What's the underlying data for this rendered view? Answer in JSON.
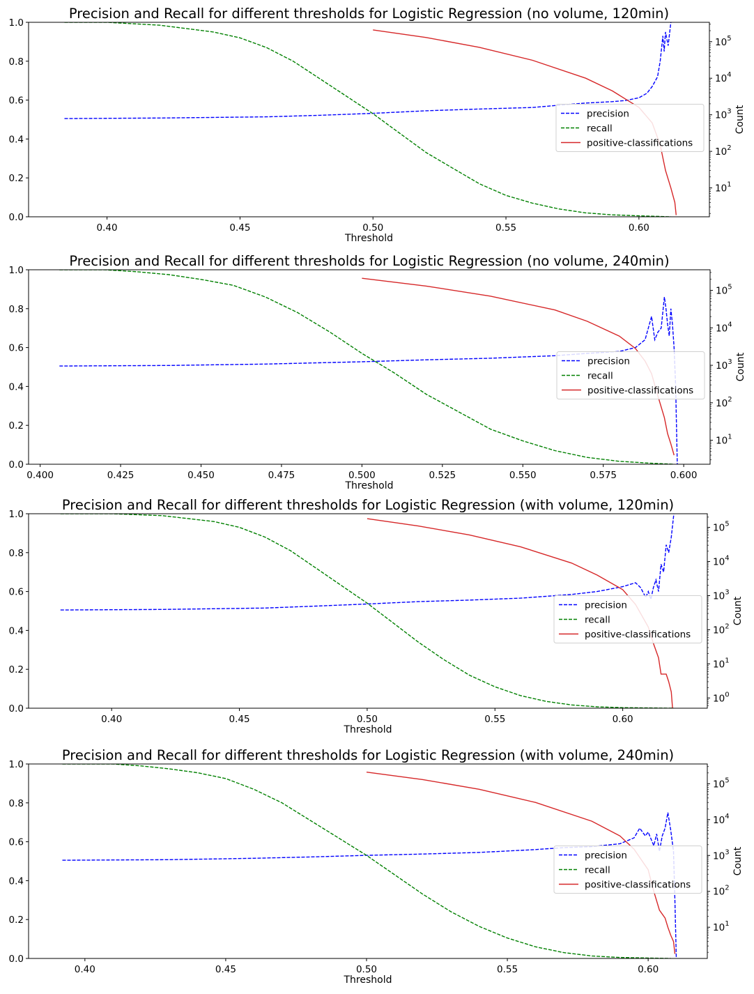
{
  "chart_data": [
    {
      "type": "line",
      "title": "Precision and Recall for different thresholds for Logistic Regression (no volume, 120min)",
      "xlabel": "Threshold",
      "ylabel": "",
      "ylabel_right": "Count",
      "xlim": [
        0.3705,
        0.6265
      ],
      "ylim": [
        0.0,
        1.0
      ],
      "ylim_right_log": [
        0.21,
        5.53
      ],
      "x_ticks": [
        "0.40",
        "0.45",
        "0.50",
        "0.55",
        "0.60"
      ],
      "x_tick_values": [
        0.4,
        0.45,
        0.5,
        0.55,
        0.6
      ],
      "y_ticks": [
        "0.0",
        "0.2",
        "0.4",
        "0.6",
        "0.8",
        "1.0"
      ],
      "y_tick_values": [
        0.0,
        0.2,
        0.4,
        0.6,
        0.8,
        1.0
      ],
      "y_right_ticks": [
        "10^1",
        "10^2",
        "10^3",
        "10^4",
        "10^5"
      ],
      "legend_position": "center-right",
      "grid": false,
      "series": [
        {
          "name": "precision",
          "axis": "left",
          "style": "dashed",
          "color": "#0000ff",
          "x": [
            0.384,
            0.42,
            0.46,
            0.48,
            0.5,
            0.52,
            0.54,
            0.56,
            0.57,
            0.58,
            0.59,
            0.595,
            0.6,
            0.603,
            0.605,
            0.607,
            0.608,
            0.609,
            0.6095,
            0.61,
            0.611,
            0.612
          ],
          "values": [
            0.505,
            0.508,
            0.514,
            0.522,
            0.532,
            0.545,
            0.554,
            0.562,
            0.574,
            0.585,
            0.592,
            0.598,
            0.612,
            0.635,
            0.67,
            0.72,
            0.8,
            0.93,
            0.85,
            0.95,
            0.88,
            1.0
          ]
        },
        {
          "name": "recall",
          "axis": "left",
          "style": "dashed",
          "color": "#008000",
          "x": [
            0.384,
            0.4,
            0.42,
            0.44,
            0.45,
            0.46,
            0.47,
            0.48,
            0.49,
            0.5,
            0.51,
            0.52,
            0.53,
            0.54,
            0.55,
            0.56,
            0.57,
            0.58,
            0.59,
            0.6,
            0.612
          ],
          "values": [
            1.0,
            1.0,
            0.985,
            0.95,
            0.92,
            0.87,
            0.8,
            0.71,
            0.62,
            0.53,
            0.43,
            0.33,
            0.25,
            0.17,
            0.11,
            0.07,
            0.04,
            0.02,
            0.01,
            0.005,
            0.0
          ]
        },
        {
          "name": "positive-classifications",
          "axis": "right",
          "style": "solid",
          "color": "#d62728",
          "x": [
            0.5,
            0.52,
            0.54,
            0.56,
            0.58,
            0.59,
            0.6,
            0.605,
            0.608,
            0.61,
            0.612,
            0.6135,
            0.614
          ],
          "values": [
            210000,
            130000,
            70000,
            31000,
            10000,
            4500,
            1600,
            600,
            150,
            30,
            10,
            4,
            1.8
          ]
        }
      ]
    },
    {
      "type": "line",
      "title": "Precision and Recall for different thresholds for Logistic Regression (no volume, 240min)",
      "xlabel": "Threshold",
      "ylabel": "",
      "ylabel_right": "Count",
      "xlim": [
        0.3964,
        0.6082
      ],
      "ylim": [
        0.0,
        1.0
      ],
      "ylim_right_log": [
        0.36,
        5.55
      ],
      "x_ticks": [
        "0.400",
        "0.425",
        "0.450",
        "0.475",
        "0.500",
        "0.525",
        "0.550",
        "0.575",
        "0.600"
      ],
      "x_tick_values": [
        0.4,
        0.425,
        0.45,
        0.475,
        0.5,
        0.525,
        0.55,
        0.575,
        0.6
      ],
      "y_ticks": [
        "0.0",
        "0.2",
        "0.4",
        "0.6",
        "0.8",
        "1.0"
      ],
      "y_tick_values": [
        0.0,
        0.2,
        0.4,
        0.6,
        0.8,
        1.0
      ],
      "y_right_ticks": [
        "10^1",
        "10^2",
        "10^3",
        "10^4",
        "10^5"
      ],
      "legend_position": "center-right",
      "grid": false,
      "series": [
        {
          "name": "precision",
          "axis": "left",
          "style": "dashed",
          "color": "#0000ff",
          "x": [
            0.406,
            0.44,
            0.47,
            0.5,
            0.52,
            0.54,
            0.56,
            0.57,
            0.58,
            0.585,
            0.588,
            0.59,
            0.591,
            0.592,
            0.593,
            0.594,
            0.5945,
            0.595,
            0.5955,
            0.596,
            0.5965,
            0.597,
            0.5975,
            0.598
          ],
          "values": [
            0.505,
            0.508,
            0.515,
            0.527,
            0.537,
            0.545,
            0.558,
            0.57,
            0.58,
            0.6,
            0.64,
            0.76,
            0.64,
            0.68,
            0.7,
            0.86,
            0.8,
            0.72,
            0.66,
            0.8,
            0.72,
            0.6,
            0.4,
            0.0
          ]
        },
        {
          "name": "recall",
          "axis": "left",
          "style": "dashed",
          "color": "#008000",
          "x": [
            0.406,
            0.42,
            0.43,
            0.44,
            0.45,
            0.46,
            0.47,
            0.48,
            0.49,
            0.5,
            0.51,
            0.52,
            0.53,
            0.54,
            0.55,
            0.56,
            0.57,
            0.58,
            0.59,
            0.597
          ],
          "values": [
            1.0,
            1.0,
            0.99,
            0.975,
            0.95,
            0.92,
            0.86,
            0.78,
            0.68,
            0.57,
            0.47,
            0.36,
            0.27,
            0.18,
            0.12,
            0.07,
            0.035,
            0.015,
            0.005,
            0.0
          ]
        },
        {
          "name": "positive-classifications",
          "axis": "right",
          "style": "solid",
          "color": "#d62728",
          "x": [
            0.5,
            0.52,
            0.54,
            0.56,
            0.57,
            0.58,
            0.585,
            0.588,
            0.59,
            0.592,
            0.594,
            0.595,
            0.596,
            0.597
          ],
          "values": [
            210000,
            130000,
            70000,
            30000,
            15000,
            6000,
            2800,
            1300,
            600,
            150,
            40,
            15,
            8,
            4
          ]
        }
      ]
    },
    {
      "type": "line",
      "title": "Precision and Recall for different thresholds for Logistic Regression (with volume, 120min)",
      "xlabel": "Threshold",
      "ylabel": "",
      "ylabel_right": "Count",
      "xlim": [
        0.3675,
        0.6331
      ],
      "ylim": [
        0.0,
        1.0
      ],
      "ylim_right_log": [
        -0.3,
        5.4
      ],
      "x_ticks": [
        "0.40",
        "0.45",
        "0.50",
        "0.55",
        "0.60"
      ],
      "x_tick_values": [
        0.4,
        0.45,
        0.5,
        0.55,
        0.6
      ],
      "y_ticks": [
        "0.0",
        "0.2",
        "0.4",
        "0.6",
        "0.8",
        "1.0"
      ],
      "y_tick_values": [
        0.0,
        0.2,
        0.4,
        0.6,
        0.8,
        1.0
      ],
      "y_right_ticks": [
        "10^0",
        "10^1",
        "10^2",
        "10^3",
        "10^4",
        "10^5"
      ],
      "legend_position": "center-right",
      "grid": false,
      "series": [
        {
          "name": "precision",
          "axis": "left",
          "style": "dashed",
          "color": "#0000ff",
          "x": [
            0.38,
            0.42,
            0.46,
            0.48,
            0.5,
            0.52,
            0.54,
            0.56,
            0.58,
            0.59,
            0.6,
            0.605,
            0.607,
            0.609,
            0.61,
            0.611,
            0.612,
            0.613,
            0.614,
            0.615,
            0.616,
            0.617,
            0.618,
            0.619,
            0.62
          ],
          "values": [
            0.505,
            0.508,
            0.515,
            0.525,
            0.536,
            0.548,
            0.556,
            0.566,
            0.585,
            0.6,
            0.625,
            0.645,
            0.62,
            0.57,
            0.6,
            0.56,
            0.62,
            0.66,
            0.6,
            0.74,
            0.7,
            0.84,
            0.8,
            0.88,
            1.0
          ]
        },
        {
          "name": "recall",
          "axis": "left",
          "style": "dashed",
          "color": "#008000",
          "x": [
            0.38,
            0.4,
            0.42,
            0.44,
            0.45,
            0.46,
            0.47,
            0.48,
            0.49,
            0.5,
            0.51,
            0.52,
            0.53,
            0.54,
            0.55,
            0.56,
            0.57,
            0.58,
            0.59,
            0.6,
            0.62
          ],
          "values": [
            1.0,
            1.0,
            0.99,
            0.96,
            0.93,
            0.88,
            0.81,
            0.72,
            0.63,
            0.54,
            0.44,
            0.34,
            0.25,
            0.17,
            0.11,
            0.065,
            0.035,
            0.017,
            0.007,
            0.003,
            0.0
          ]
        },
        {
          "name": "positive-classifications",
          "axis": "right",
          "style": "solid",
          "color": "#d62728",
          "x": [
            0.5,
            0.52,
            0.54,
            0.56,
            0.58,
            0.59,
            0.6,
            0.605,
            0.61,
            0.612,
            0.614,
            0.615,
            0.617,
            0.618,
            0.619,
            0.6195
          ],
          "values": [
            180000,
            110000,
            60000,
            27000,
            9000,
            4000,
            1500,
            550,
            120,
            40,
            15,
            5,
            5,
            3,
            1.5,
            0.5
          ]
        }
      ]
    },
    {
      "type": "line",
      "title": "Precision and Recall for different thresholds for Logistic Regression (with volume, 240min)",
      "xlabel": "Threshold",
      "ylabel": "",
      "ylabel_right": "Count",
      "xlim": [
        0.38,
        0.621
      ],
      "ylim": [
        0.0,
        1.0
      ],
      "ylim_right_log": [
        0.13,
        5.55
      ],
      "x_ticks": [
        "0.40",
        "0.45",
        "0.50",
        "0.55",
        "0.60"
      ],
      "x_tick_values": [
        0.4,
        0.45,
        0.5,
        0.55,
        0.6
      ],
      "y_ticks": [
        "0.0",
        "0.2",
        "0.4",
        "0.6",
        "0.8",
        "1.0"
      ],
      "y_tick_values": [
        0.0,
        0.2,
        0.4,
        0.6,
        0.8,
        1.0
      ],
      "y_right_ticks": [
        "10^1",
        "10^2",
        "10^3",
        "10^4",
        "10^5"
      ],
      "legend_position": "center-right",
      "grid": false,
      "series": [
        {
          "name": "precision",
          "axis": "left",
          "style": "dashed",
          "color": "#0000ff",
          "x": [
            0.392,
            0.43,
            0.46,
            0.48,
            0.5,
            0.52,
            0.54,
            0.56,
            0.57,
            0.58,
            0.59,
            0.595,
            0.597,
            0.599,
            0.6,
            0.602,
            0.603,
            0.604,
            0.605,
            0.606,
            0.607,
            0.608,
            0.609,
            0.6095,
            0.61
          ],
          "values": [
            0.505,
            0.508,
            0.515,
            0.522,
            0.53,
            0.537,
            0.545,
            0.56,
            0.57,
            0.575,
            0.59,
            0.62,
            0.67,
            0.63,
            0.65,
            0.58,
            0.64,
            0.55,
            0.63,
            0.67,
            0.75,
            0.66,
            0.55,
            0.3,
            0.0
          ]
        },
        {
          "name": "recall",
          "axis": "left",
          "style": "dashed",
          "color": "#008000",
          "x": [
            0.392,
            0.41,
            0.42,
            0.43,
            0.44,
            0.45,
            0.46,
            0.47,
            0.48,
            0.49,
            0.5,
            0.51,
            0.52,
            0.53,
            0.54,
            0.55,
            0.56,
            0.57,
            0.58,
            0.59,
            0.608
          ],
          "values": [
            1.0,
            1.0,
            0.99,
            0.975,
            0.955,
            0.925,
            0.87,
            0.8,
            0.71,
            0.62,
            0.53,
            0.43,
            0.33,
            0.24,
            0.165,
            0.105,
            0.06,
            0.03,
            0.013,
            0.005,
            0.0
          ]
        },
        {
          "name": "positive-classifications",
          "axis": "right",
          "style": "solid",
          "color": "#d62728",
          "x": [
            0.5,
            0.52,
            0.54,
            0.56,
            0.58,
            0.59,
            0.595,
            0.6,
            0.602,
            0.604,
            0.606,
            0.607,
            0.608,
            0.609,
            0.6095
          ],
          "values": [
            210000,
            130000,
            70000,
            30000,
            9000,
            3500,
            1500,
            400,
            100,
            30,
            18,
            10,
            6,
            4,
            1.8
          ]
        }
      ]
    }
  ]
}
